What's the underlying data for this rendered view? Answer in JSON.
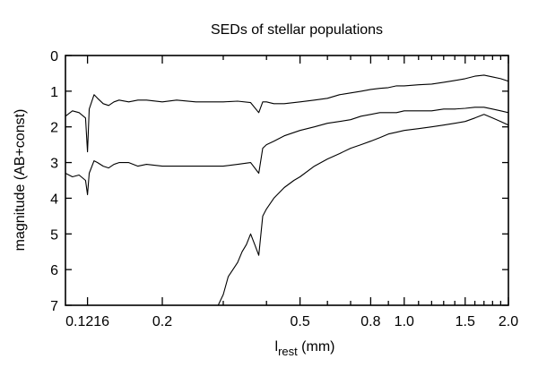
{
  "chart_data": {
    "type": "line",
    "title": "SEDs of stellar populations",
    "ylabel": "magnitude (AB+const)",
    "xlabel": {
      "main": "l",
      "sub": "rest",
      "unit": " (mm)"
    },
    "x_scale": "log",
    "xlim": [
      0.105,
      2.0
    ],
    "ylim": [
      7,
      0
    ],
    "y_inverted": true,
    "grid": false,
    "legend": "none",
    "x_ticks": [
      {
        "value": 0.1216,
        "label": "0.1216"
      },
      {
        "value": 0.2,
        "label": "0.2"
      },
      {
        "value": 0.5,
        "label": "0.5"
      },
      {
        "value": 0.8,
        "label": "0.8"
      },
      {
        "value": 1.0,
        "label": "1.0"
      },
      {
        "value": 1.5,
        "label": "1.5"
      },
      {
        "value": 2.0,
        "label": "2.0"
      }
    ],
    "x_minor_ticks": [
      0.3,
      0.4,
      0.6,
      0.7,
      0.9,
      1.1,
      1.2,
      1.3,
      1.4,
      1.6,
      1.7,
      1.8,
      1.9
    ],
    "y_ticks": [
      0,
      1,
      2,
      3,
      4,
      5,
      6,
      7
    ],
    "series": [
      {
        "x": [
          0.105,
          0.11,
          0.115,
          0.12,
          0.1216,
          0.123,
          0.127,
          0.13,
          0.135,
          0.14,
          0.145,
          0.15,
          0.16,
          0.17,
          0.18,
          0.2,
          0.22,
          0.25,
          0.28,
          0.3,
          0.33,
          0.36,
          0.38,
          0.39,
          0.4,
          0.42,
          0.45,
          0.5,
          0.55,
          0.6,
          0.65,
          0.7,
          0.75,
          0.8,
          0.85,
          0.9,
          0.95,
          1.0,
          1.1,
          1.2,
          1.3,
          1.4,
          1.5,
          1.6,
          1.7,
          1.8,
          1.9,
          2.0
        ],
        "y": [
          1.7,
          1.55,
          1.6,
          1.75,
          2.7,
          1.5,
          1.1,
          1.2,
          1.35,
          1.4,
          1.3,
          1.25,
          1.3,
          1.25,
          1.25,
          1.3,
          1.25,
          1.3,
          1.3,
          1.3,
          1.28,
          1.32,
          1.6,
          1.3,
          1.3,
          1.35,
          1.35,
          1.3,
          1.25,
          1.2,
          1.1,
          1.05,
          1.0,
          0.95,
          0.92,
          0.9,
          0.85,
          0.85,
          0.82,
          0.8,
          0.75,
          0.7,
          0.65,
          0.58,
          0.55,
          0.6,
          0.65,
          0.72
        ]
      },
      {
        "x": [
          0.105,
          0.11,
          0.115,
          0.12,
          0.1216,
          0.123,
          0.127,
          0.13,
          0.135,
          0.14,
          0.145,
          0.15,
          0.16,
          0.17,
          0.18,
          0.2,
          0.22,
          0.25,
          0.28,
          0.3,
          0.33,
          0.36,
          0.38,
          0.39,
          0.4,
          0.42,
          0.45,
          0.5,
          0.55,
          0.6,
          0.65,
          0.7,
          0.75,
          0.8,
          0.85,
          0.9,
          0.95,
          1.0,
          1.1,
          1.2,
          1.3,
          1.4,
          1.5,
          1.6,
          1.7,
          1.8,
          1.9,
          2.0
        ],
        "y": [
          3.3,
          3.4,
          3.35,
          3.5,
          3.9,
          3.3,
          2.95,
          3.0,
          3.1,
          3.15,
          3.05,
          3.0,
          3.0,
          3.1,
          3.05,
          3.1,
          3.1,
          3.1,
          3.1,
          3.1,
          3.05,
          3.0,
          3.3,
          2.6,
          2.5,
          2.4,
          2.25,
          2.1,
          2.0,
          1.9,
          1.85,
          1.8,
          1.7,
          1.65,
          1.6,
          1.6,
          1.6,
          1.55,
          1.55,
          1.55,
          1.5,
          1.5,
          1.48,
          1.45,
          1.45,
          1.5,
          1.55,
          1.6
        ]
      },
      {
        "x": [
          0.29,
          0.3,
          0.31,
          0.32,
          0.33,
          0.34,
          0.35,
          0.36,
          0.37,
          0.38,
          0.39,
          0.4,
          0.42,
          0.45,
          0.48,
          0.5,
          0.55,
          0.6,
          0.65,
          0.7,
          0.75,
          0.8,
          0.85,
          0.9,
          0.95,
          1.0,
          1.1,
          1.2,
          1.3,
          1.4,
          1.5,
          1.6,
          1.7,
          1.8,
          1.9,
          2.0
        ],
        "y": [
          7.0,
          6.7,
          6.2,
          6.0,
          5.8,
          5.5,
          5.3,
          5.0,
          5.3,
          5.6,
          4.5,
          4.3,
          4.0,
          3.7,
          3.5,
          3.4,
          3.1,
          2.9,
          2.75,
          2.6,
          2.5,
          2.4,
          2.3,
          2.2,
          2.15,
          2.1,
          2.05,
          2.0,
          1.95,
          1.9,
          1.85,
          1.75,
          1.65,
          1.75,
          1.85,
          1.95
        ]
      }
    ]
  }
}
